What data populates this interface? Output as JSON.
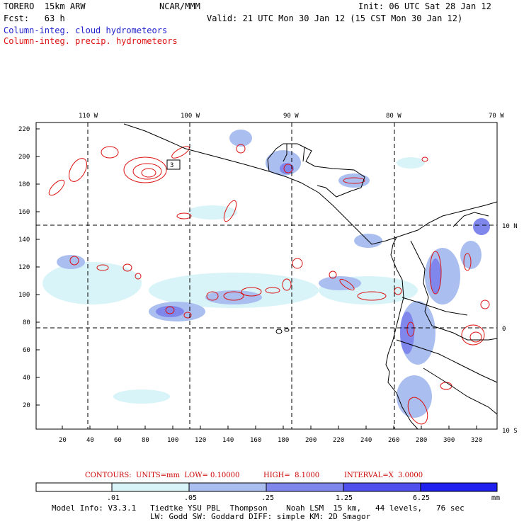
{
  "header": {
    "model_line": "TORERO  15km ARW",
    "center": "NCAR/MMM",
    "init": "Init: 06 UTC Sat 28 Jan 12",
    "fcst": "Fcst:   63 h",
    "valid": "Valid: 21 UTC Mon 30 Jan 12 (15 CST Mon 30 Jan 12)",
    "field1": "Column-integ. cloud hydrometeors",
    "field2": "Column-integ. precip. hydrometeors"
  },
  "map": {
    "lon_labels": [
      "110 W",
      "100 W",
      "90 W",
      "80 W",
      "70 W"
    ],
    "lat_labels": [
      "10 N",
      "0",
      "10 S"
    ],
    "y_ticks": [
      "220",
      "200",
      "180",
      "160",
      "140",
      "120",
      "100",
      "80",
      "60",
      "40",
      "20"
    ],
    "x_ticks": [
      "20",
      "40",
      "60",
      "80",
      "100",
      "120",
      "140",
      "160",
      "180",
      "200",
      "220",
      "240",
      "260",
      "280",
      "300",
      "320"
    ],
    "contour_label": "3"
  },
  "contours_text": {
    "units": "CONTOURS:  UNITS=mm  LOW= 0.10000",
    "high": "HIGH=  8.1000",
    "interval": "INTERVAL=X  3.0000"
  },
  "colorbar": {
    "levels": [
      ".01",
      ".05",
      ".25",
      "1.25",
      "6.25"
    ],
    "unit": "mm",
    "colors": [
      "#ffffff",
      "#d8f4f8",
      "#aabef0",
      "#7f86ec",
      "#5050ee",
      "#2020f0"
    ]
  },
  "footer": {
    "line1": "Model Info: V3.3.1   Tiedtke YSU PBL  Thompson    Noah LSM  15 km,   44 levels,   76 sec",
    "line2": "LW: Godd SW: Goddard DIFF: simple KM: 2D Smagor"
  }
}
